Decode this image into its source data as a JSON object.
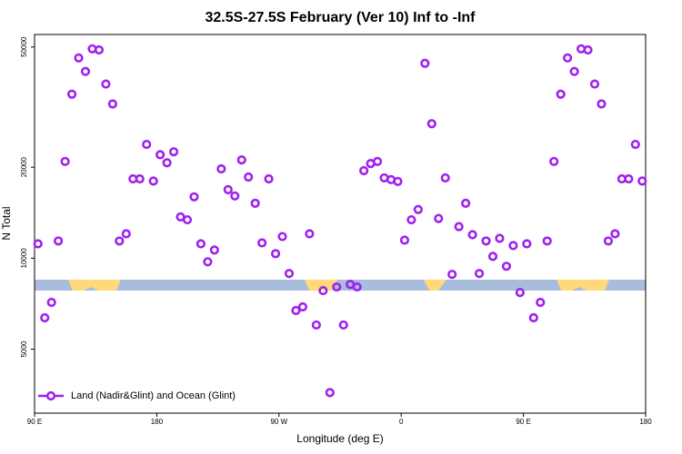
{
  "chart_data": {
    "type": "scatter",
    "title": "32.5S-27.5S February (Ver 10)   Inf to -Inf",
    "x_label": "Longitude (deg E)",
    "y_label": "N Total",
    "yscale": "log",
    "legend": "lower left",
    "series": [
      {
        "name": "Land (Nadir&Glint) and Ocean (Glint)",
        "color": "#a020f0",
        "x": [
          92.5,
          97.5,
          102.5,
          107.5,
          112.5,
          117.5,
          122.5,
          127.5,
          132.5,
          137.5,
          142.5,
          147.5,
          152.5,
          157.5,
          162.5,
          167.5,
          172.5,
          177.5,
          182.5,
          187.5,
          192.5,
          197.5,
          202.5,
          207.5,
          212.5,
          217.5,
          222.5,
          227.5,
          232.5,
          237.5,
          242.5,
          247.5,
          252.5,
          257.5,
          262.5,
          267.5,
          272.5,
          277.5,
          282.5,
          287.5,
          292.5,
          297.5,
          302.5,
          307.5,
          312.5,
          317.5,
          322.5,
          327.5,
          332.5,
          337.5,
          342.5,
          347.5,
          352.5,
          357.5,
          362.5,
          367.5,
          372.5,
          377.5,
          382.5,
          387.5,
          392.5,
          397.5,
          402.5,
          407.5,
          412.5,
          417.5,
          422.5,
          427.5,
          432.5,
          437.5,
          442.5,
          447.5,
          452.5,
          457.5,
          462.5,
          467.5,
          472.5,
          477.5,
          482.5,
          487.5,
          492.5,
          497.5,
          502.5,
          507.5,
          512.5,
          517.5,
          522.5,
          527.5,
          532.5,
          537.5
        ],
        "values": [
          11160,
          6350,
          7140,
          11400,
          20900,
          34900,
          46000,
          41500,
          49300,
          48900,
          37700,
          32400,
          11400,
          12040,
          18300,
          18300,
          23800,
          18000,
          22000,
          20700,
          22500,
          13700,
          13400,
          15960,
          11160,
          9730,
          10640,
          19750,
          16860,
          16070,
          21150,
          18560,
          15200,
          11240,
          18300,
          10350,
          11790,
          8900,
          6710,
          6900,
          12040,
          6010,
          7810,
          3590,
          8030,
          6010,
          8190,
          8030,
          19480,
          20570,
          20900,
          18440,
          18200,
          17940,
          11470,
          13400,
          14490,
          44150,
          27860,
          13530,
          18440,
          8840,
          12720,
          15200,
          11960,
          8900,
          11400,
          10140,
          11630,
          9400,
          11010,
          7700,
          11160,
          6350,
          7140,
          11400,
          20900,
          34900,
          46000,
          41500,
          49300,
          48900,
          37700,
          32400,
          11400,
          12040,
          18300,
          18300,
          23800,
          18000
        ]
      }
    ],
    "xlim": [
      90,
      540
    ],
    "xticks": [
      {
        "value": 90,
        "label": "90 E"
      },
      180,
      {
        "value": 270,
        "label": "90 W"
      },
      {
        "value": 360,
        "label": "0"
      },
      {
        "value": 450,
        "label": "90 E"
      },
      {
        "value": 540,
        "label": "180"
      }
    ],
    "ylim": [
      3070,
      55000
    ],
    "yticks": [
      5000,
      10000,
      20000,
      50000
    ]
  }
}
